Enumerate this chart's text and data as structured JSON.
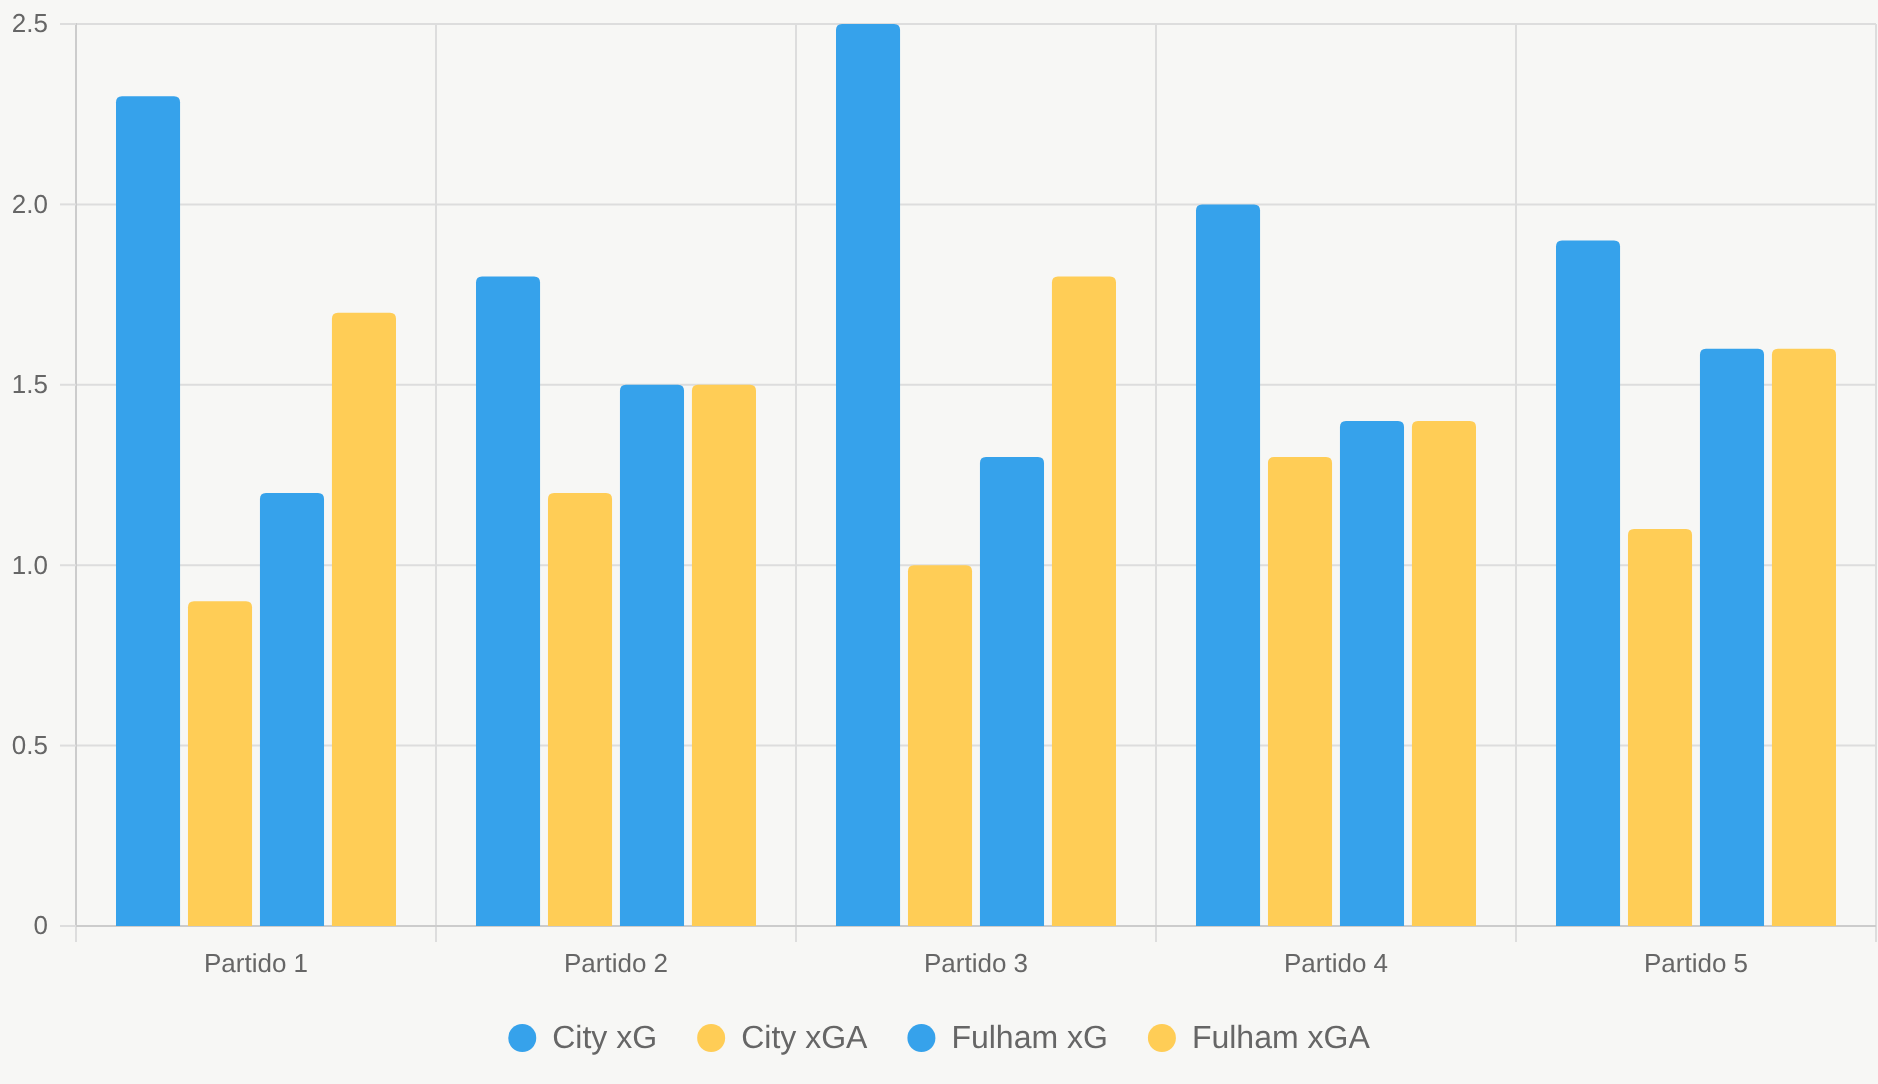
{
  "chart_data": {
    "type": "bar",
    "categories": [
      "Partido 1",
      "Partido 2",
      "Partido 3",
      "Partido 4",
      "Partido 5"
    ],
    "series": [
      {
        "name": "City xG",
        "color": "#36a2eb",
        "values": [
          2.3,
          1.8,
          2.5,
          2.0,
          1.9
        ]
      },
      {
        "name": "City xGA",
        "color": "#ffcd56",
        "values": [
          0.9,
          1.2,
          1.0,
          1.3,
          1.1
        ]
      },
      {
        "name": "Fulham xG",
        "color": "#36a2eb",
        "values": [
          1.2,
          1.5,
          1.3,
          1.4,
          1.6
        ]
      },
      {
        "name": "Fulham xGA",
        "color": "#ffcd56",
        "values": [
          1.7,
          1.5,
          1.8,
          1.4,
          1.6
        ]
      }
    ],
    "ylim": [
      0,
      2.5
    ],
    "yticks": [
      0,
      0.5,
      {
        "value": 1,
        "label": "1.0"
      },
      1.5,
      {
        "value": 2,
        "label": "2.0"
      },
      2.5
    ],
    "grid": true,
    "legend": "bottom"
  }
}
